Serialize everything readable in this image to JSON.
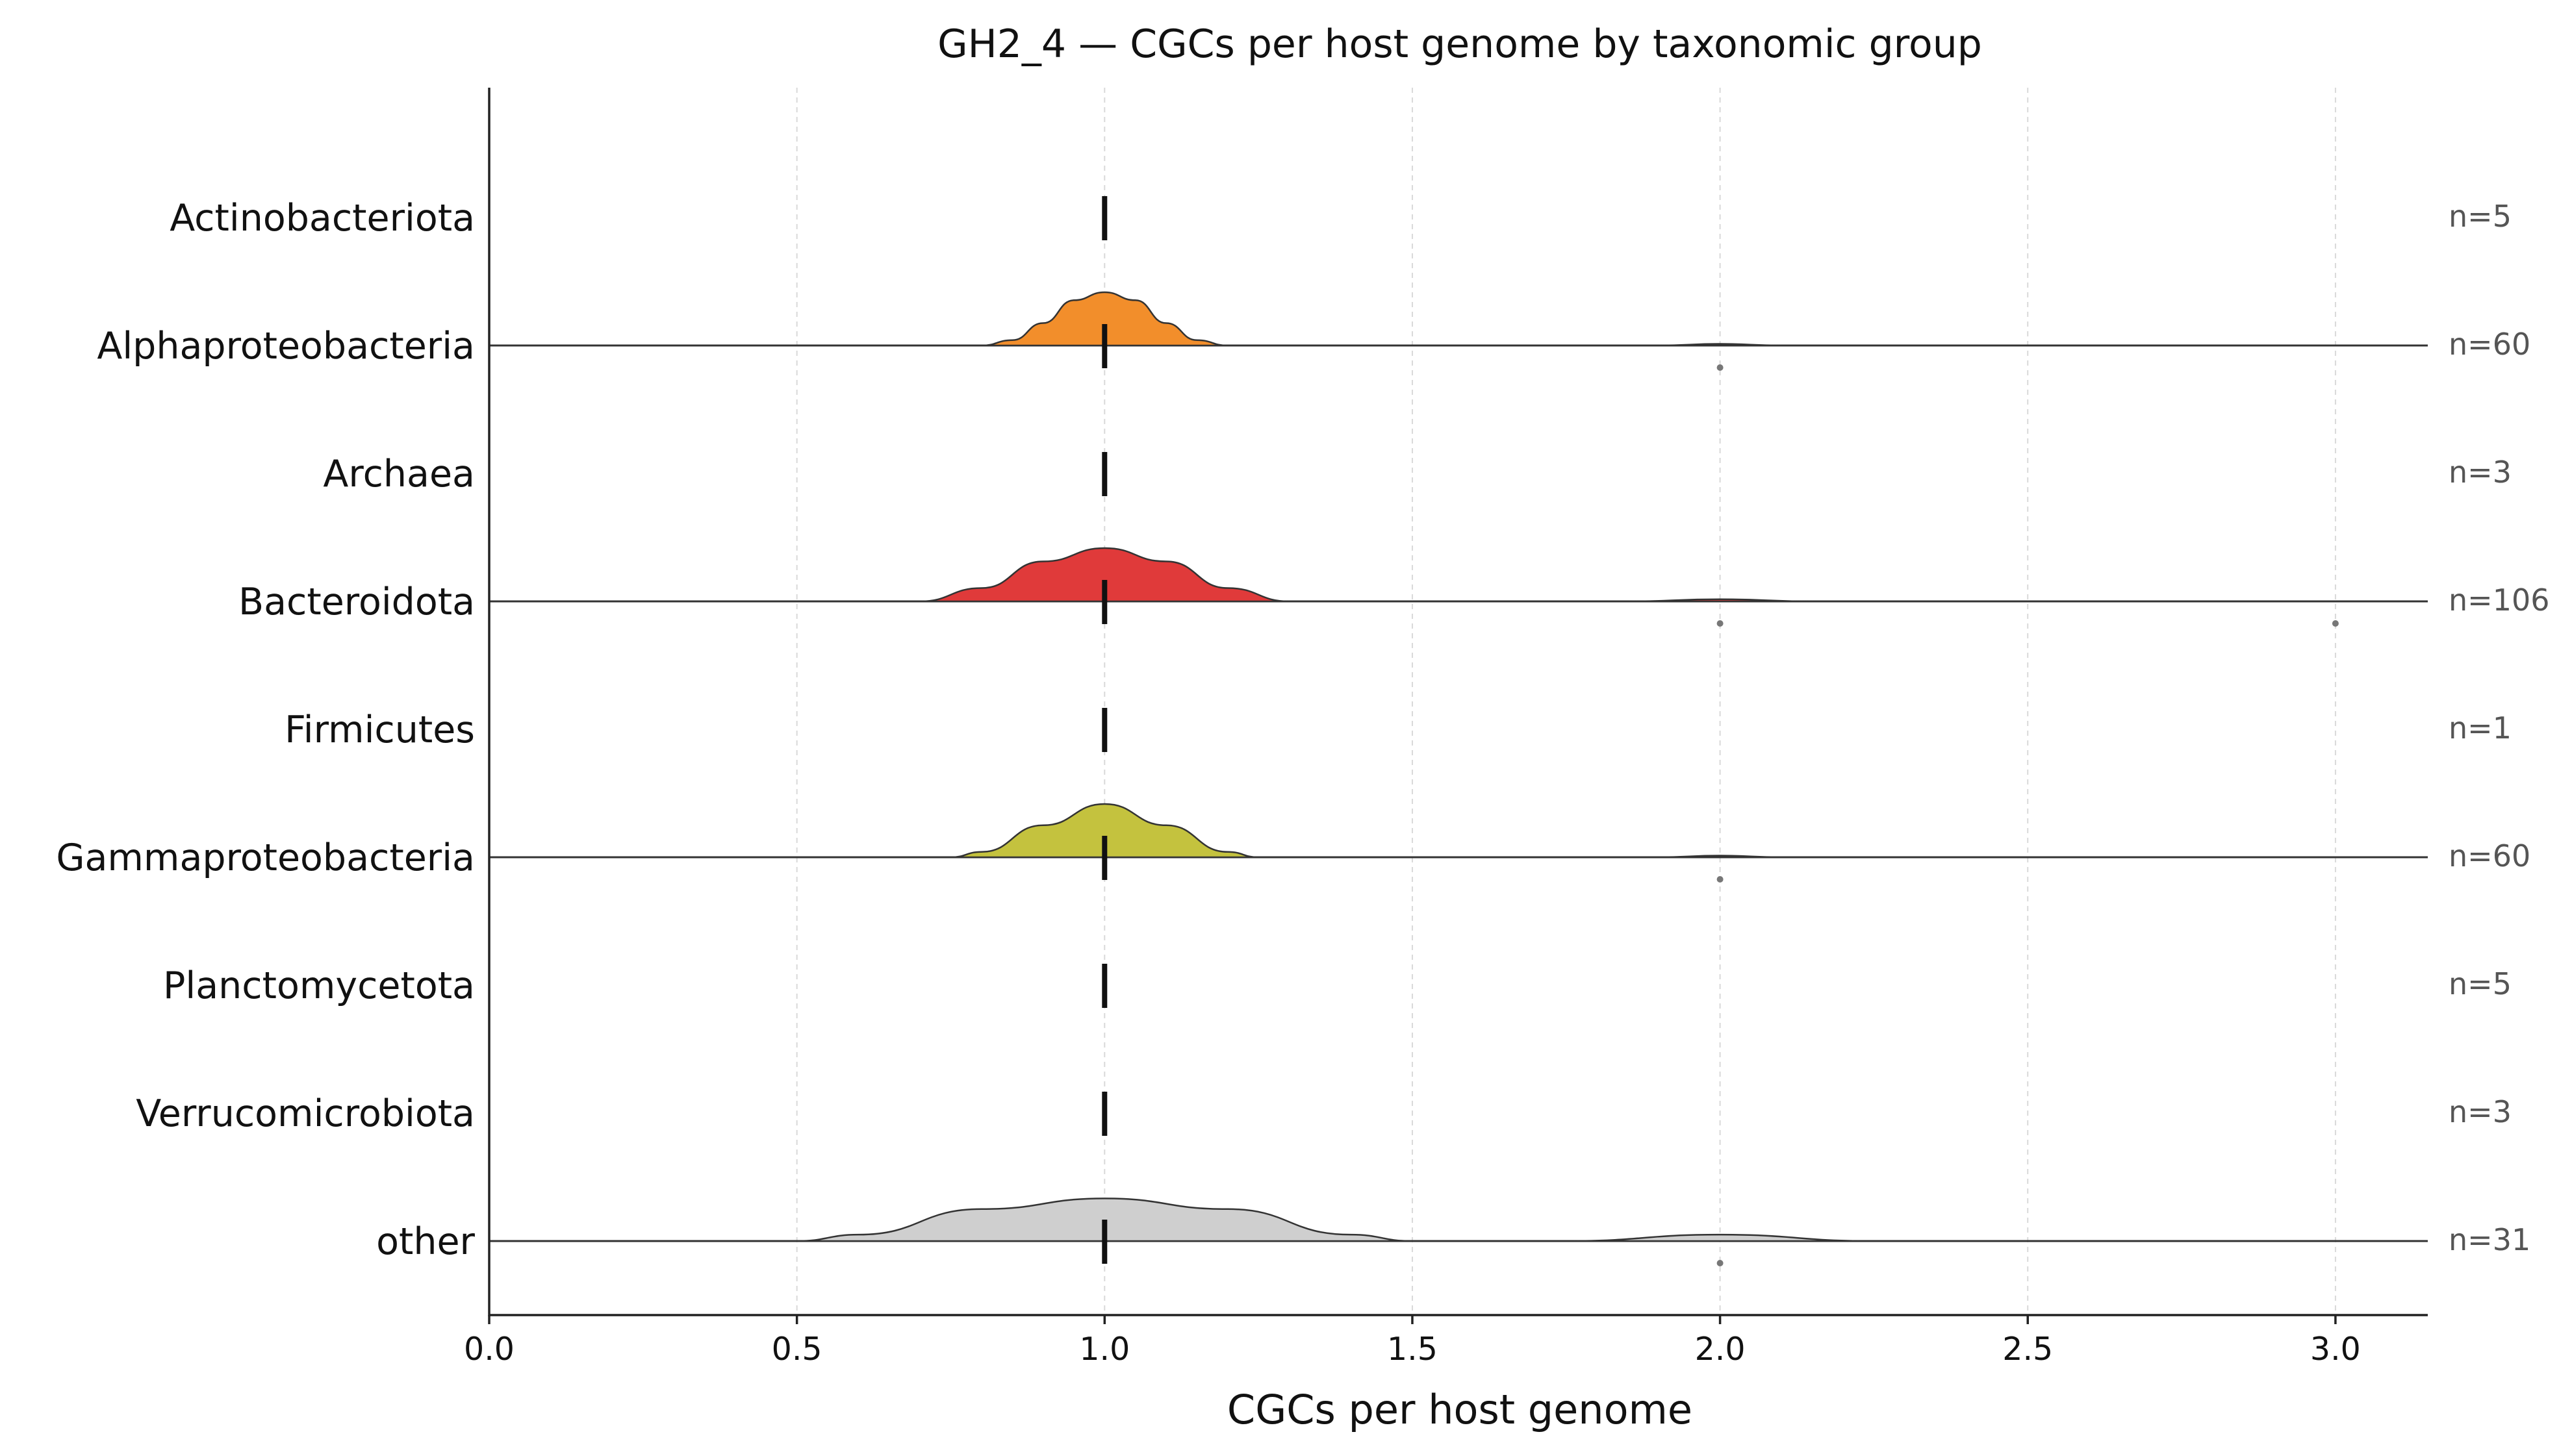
{
  "chart_data": {
    "type": "ridgeline",
    "title": "GH2_4 — CGCs per host genome by taxonomic group",
    "xlabel": "CGCs per host genome",
    "ylabel": "",
    "xlim": [
      0,
      3.15
    ],
    "xticks": [
      0.0,
      0.5,
      1.0,
      1.5,
      2.0,
      2.5,
      3.0
    ],
    "xtick_labels": [
      "0.0",
      "0.5",
      "1.0",
      "1.5",
      "2.0",
      "2.5",
      "3.0"
    ],
    "grid": "vertical dashed",
    "median_marker": "dashed black vertical line at each group's median",
    "groups": [
      {
        "name": "Actinobacteriota",
        "n_label": "n=5",
        "median": 1.0,
        "color": "",
        "density": [],
        "outliers": []
      },
      {
        "name": "Alphaproteobacteria",
        "n_label": "n=60",
        "median": 1.0,
        "color": "#f28e2b",
        "density": [
          [
            0.8,
            0.0
          ],
          [
            0.85,
            0.1
          ],
          [
            0.9,
            0.42
          ],
          [
            0.95,
            0.85
          ],
          [
            1.0,
            1.0
          ],
          [
            1.05,
            0.85
          ],
          [
            1.1,
            0.42
          ],
          [
            1.15,
            0.1
          ],
          [
            1.2,
            0.0
          ],
          [
            1.9,
            0.0
          ],
          [
            2.0,
            0.03
          ],
          [
            2.1,
            0.0
          ],
          [
            3.15,
            0.0
          ]
        ],
        "outliers": [
          2.0
        ]
      },
      {
        "name": "Archaea",
        "n_label": "n=3",
        "median": 1.0,
        "color": "",
        "density": [],
        "outliers": []
      },
      {
        "name": "Bacteroidota",
        "n_label": "n=106",
        "median": 1.0,
        "color": "#e03a3a",
        "density": [
          [
            0.7,
            0.0
          ],
          [
            0.8,
            0.25
          ],
          [
            0.9,
            0.75
          ],
          [
            1.0,
            1.0
          ],
          [
            1.1,
            0.75
          ],
          [
            1.2,
            0.25
          ],
          [
            1.3,
            0.0
          ],
          [
            1.85,
            0.0
          ],
          [
            2.0,
            0.04
          ],
          [
            2.15,
            0.0
          ],
          [
            3.15,
            0.0
          ]
        ],
        "outliers": [
          2.0,
          3.0
        ]
      },
      {
        "name": "Firmicutes",
        "n_label": "n=1",
        "median": 1.0,
        "color": "",
        "density": [],
        "outliers": []
      },
      {
        "name": "Gammaproteobacteria",
        "n_label": "n=60",
        "median": 1.0,
        "color": "#c4c23e",
        "density": [
          [
            0.75,
            0.0
          ],
          [
            0.8,
            0.1
          ],
          [
            0.9,
            0.6
          ],
          [
            1.0,
            1.0
          ],
          [
            1.1,
            0.6
          ],
          [
            1.2,
            0.1
          ],
          [
            1.25,
            0.0
          ],
          [
            1.9,
            0.0
          ],
          [
            2.0,
            0.03
          ],
          [
            2.1,
            0.0
          ],
          [
            3.15,
            0.0
          ]
        ],
        "outliers": [
          2.0
        ]
      },
      {
        "name": "Planctomycetota",
        "n_label": "n=5",
        "median": 1.0,
        "color": "",
        "density": [],
        "outliers": []
      },
      {
        "name": "Verrucomicrobiota",
        "n_label": "n=3",
        "median": 1.0,
        "color": "",
        "density": [],
        "outliers": []
      },
      {
        "name": "other",
        "n_label": "n=31",
        "median": 1.0,
        "color": "#cfcfcf",
        "density": [
          [
            0.5,
            0.0
          ],
          [
            0.6,
            0.12
          ],
          [
            0.8,
            0.6
          ],
          [
            1.0,
            0.8
          ],
          [
            1.2,
            0.6
          ],
          [
            1.4,
            0.12
          ],
          [
            1.5,
            0.0
          ],
          [
            1.75,
            0.0
          ],
          [
            2.0,
            0.12
          ],
          [
            2.25,
            0.0
          ],
          [
            3.15,
            0.0
          ]
        ],
        "outliers": [
          2.0
        ]
      }
    ]
  }
}
